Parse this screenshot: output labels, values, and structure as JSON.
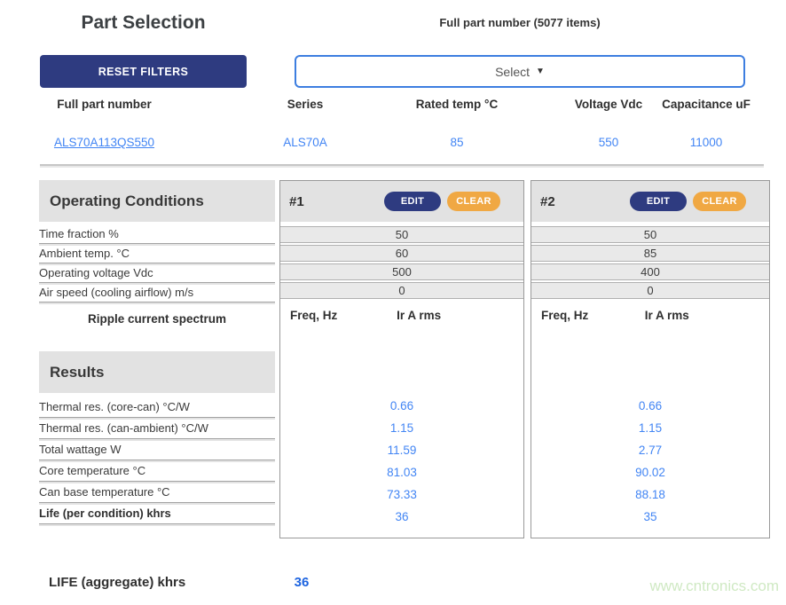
{
  "part_selection": {
    "title": "Part Selection",
    "reset_button": "RESET FILTERS",
    "dropdown_label": "Full part number (5077 items)",
    "select_label": "Select",
    "select_caret": "▼",
    "columns": [
      "Full part number",
      "Series",
      "Rated temp °C",
      "Voltage Vdc",
      "Capacitance uF"
    ],
    "selected_part": {
      "full_part_number": "ALS70A113QS550",
      "series": "ALS70A",
      "rated_temp_c": "85",
      "voltage_vdc": "550",
      "capacitance_uf": "11000"
    }
  },
  "operating_conditions": {
    "title": "Operating Conditions",
    "row_labels": [
      "Time fraction %",
      "Ambient temp. °C",
      "Operating voltage Vdc",
      "Air speed (cooling airflow) m/s"
    ],
    "ripple_label": "Ripple current spectrum",
    "spectrum_columns": {
      "freq": "Freq, Hz",
      "current": "Ir A rms"
    }
  },
  "results": {
    "title": "Results",
    "row_labels": [
      "Thermal res. (core-can) °C/W",
      "Thermal res. (can-ambient) °C/W",
      "Total wattage W",
      "Core temperature °C",
      "Can base temperature °C",
      "Life (per condition) khrs"
    ]
  },
  "conditions": [
    {
      "id": "#1",
      "edit_button": "EDIT",
      "clear_button": "CLEAR",
      "values": [
        "50",
        "60",
        "500",
        "0"
      ],
      "results": [
        "0.66",
        "1.15",
        "11.59",
        "81.03",
        "73.33",
        "36"
      ]
    },
    {
      "id": "#2",
      "edit_button": "EDIT",
      "clear_button": "CLEAR",
      "values": [
        "50",
        "85",
        "400",
        "0"
      ],
      "results": [
        "0.66",
        "1.15",
        "2.77",
        "90.02",
        "88.18",
        "35"
      ]
    }
  ],
  "aggregate": {
    "label": "LIFE (aggregate) khrs",
    "value": "36"
  },
  "watermark": "www.cntronics.com",
  "colors": {
    "navy": "#2e3b80",
    "orange": "#f0a843",
    "value_blue": "#4285f4",
    "aggregate_blue": "#1d64e0",
    "select_border": "#3d7ee0",
    "section_bg": "#e2e2e2",
    "cell_bg": "#e9e9e9",
    "watermark_green": "#cfe9c3"
  }
}
